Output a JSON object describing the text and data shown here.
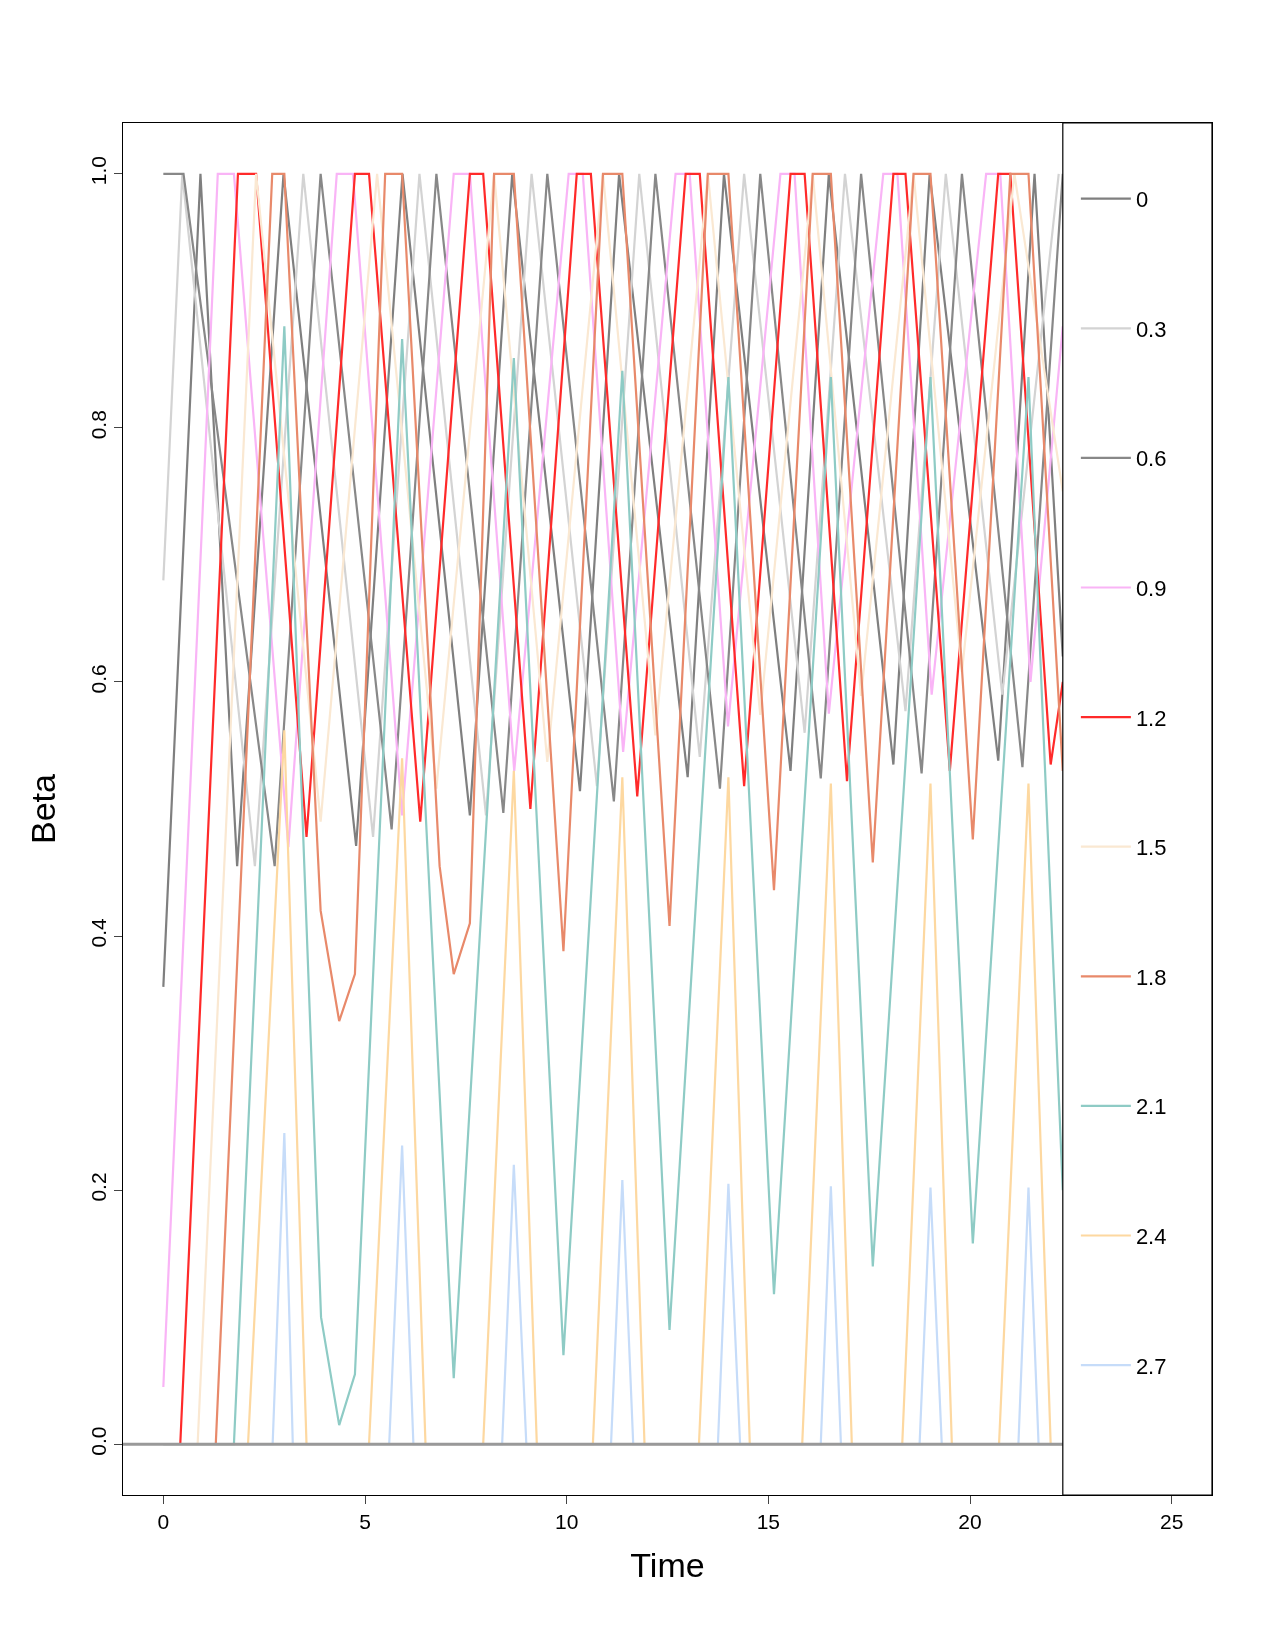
{
  "chart_data": {
    "type": "line",
    "xlabel": "Time",
    "ylabel": "Beta",
    "xlim": [
      -1,
      26
    ],
    "xticks": [
      0,
      5,
      10,
      15,
      20,
      25
    ],
    "ylim": [
      -0.04,
      1.04
    ],
    "yticks": [
      {
        "value": 0,
        "label": "0.0"
      },
      0.2,
      0.4,
      0.6,
      0.8,
      {
        "value": 1,
        "label": "1.0"
      }
    ],
    "grid": false,
    "legend": "right",
    "marker": "none",
    "line_style": "solid",
    "ref_lines": [
      {
        "axis": "y",
        "value": 0,
        "color": "#999999"
      }
    ],
    "series": [
      {
        "name": "0",
        "color": "#7f7f7f",
        "x": [
          0,
          0.92,
          1.83,
          2.98,
          4.78,
          5.93,
          7.6,
          8.65,
          10.33,
          11.3,
          13.0,
          13.9,
          15.55,
          16.5,
          18.1,
          19.0,
          20.7,
          21.6,
          22.3
        ],
        "values": [
          0.36,
          1,
          0.455,
          1,
          0.471,
          1,
          0.495,
          1,
          0.514,
          1,
          0.525,
          1,
          0.53,
          1,
          0.535,
          1,
          0.538,
          1,
          0.62
        ]
      },
      {
        "name": "0.3",
        "color": "#d3d3d3",
        "x": [
          0,
          0.47,
          2.27,
          3.47,
          5.2,
          6.35,
          8.0,
          9.13,
          10.75,
          11.8,
          13.3,
          14.4,
          15.9,
          16.9,
          18.4,
          19.4,
          20.8,
          22.2
        ],
        "values": [
          0.68,
          1,
          0.455,
          1,
          0.478,
          1,
          0.495,
          1,
          0.518,
          1,
          0.541,
          1,
          0.56,
          1,
          0.577,
          1,
          0.59,
          1
        ]
      },
      {
        "name": "0.6",
        "color": "#888888",
        "x": [
          0,
          0.5,
          2.76,
          3.9,
          5.66,
          6.77,
          8.43,
          9.52,
          11.17,
          12.2,
          13.8,
          14.8,
          16.3,
          17.3,
          18.8,
          19.8,
          21.3,
          22.3
        ],
        "values": [
          1,
          1,
          0.455,
          1,
          0.484,
          1,
          0.497,
          1,
          0.506,
          1,
          0.516,
          1,
          0.524,
          1,
          0.528,
          1,
          0.533,
          1
        ]
      },
      {
        "name": "0.9",
        "color": "#f9b4f6",
        "x": [
          0,
          1.35,
          1.75,
          3.1,
          4.3,
          4.7,
          5.92,
          7.2,
          7.6,
          8.7,
          10.05,
          10.4,
          11.4,
          12.7,
          13.05,
          14.0,
          15.3,
          15.65,
          16.5,
          17.85,
          18.2,
          19.05,
          20.4,
          20.75,
          21.5,
          22.3
        ],
        "values": [
          0.045,
          1,
          1,
          0.47,
          1,
          1,
          0.495,
          1,
          1,
          0.53,
          1,
          1,
          0.545,
          1,
          1,
          0.565,
          1,
          1,
          0.575,
          1,
          1,
          0.59,
          1,
          1,
          0.6,
          0.88
        ]
      },
      {
        "name": "1.2",
        "color": "#ff2a2a",
        "x": [
          0.42,
          1.85,
          2.3,
          3.55,
          4.75,
          5.1,
          6.37,
          7.6,
          7.93,
          9.1,
          10.25,
          10.6,
          11.75,
          12.95,
          13.3,
          14.4,
          15.55,
          15.9,
          16.95,
          18.1,
          18.4,
          19.5,
          20.7,
          21.0,
          22.0,
          22.3
        ],
        "values": [
          0,
          1,
          1,
          0.478,
          1,
          1,
          0.49,
          1,
          1,
          0.5,
          1,
          1,
          0.51,
          1,
          1,
          0.518,
          1,
          1,
          0.522,
          1,
          1,
          0.53,
          1,
          1,
          0.535,
          0.6
        ]
      },
      {
        "name": "1.5",
        "color": "#fae8d2",
        "x": [
          0.85,
          2.3,
          3.9,
          5.3,
          6.77,
          8.2,
          9.52,
          10.9,
          12.2,
          13.5,
          14.8,
          16.1,
          17.3,
          18.6,
          19.8,
          21.1,
          22.3
        ],
        "values": [
          0,
          1,
          0.49,
          1,
          0.516,
          1,
          0.537,
          1,
          0.558,
          1,
          0.574,
          1,
          0.589,
          1,
          0.608,
          1,
          0.75
        ]
      },
      {
        "name": "1.8",
        "color": "#e8896a",
        "x": [
          1.3,
          2.7,
          3.0,
          3.9,
          4.36,
          4.75,
          5.5,
          5.92,
          6.85,
          7.2,
          7.6,
          8.2,
          8.69,
          9.92,
          10.9,
          11.38,
          12.55,
          13.5,
          14.01,
          15.14,
          16.1,
          16.55,
          17.59,
          18.6,
          19.02,
          20.07,
          21.0,
          21.45,
          22.3
        ],
        "values": [
          0,
          1,
          1,
          0.42,
          0.333,
          0.37,
          1,
          1,
          0.455,
          0.37,
          0.41,
          1,
          1,
          0.388,
          1,
          1,
          0.408,
          1,
          1,
          0.436,
          1,
          1,
          0.458,
          1,
          1,
          0.476,
          1,
          1,
          0.53
        ]
      },
      {
        "name": "2.1",
        "color": "#8ecbc5",
        "x": [
          0,
          1.75,
          3.0,
          3.91,
          4.36,
          4.75,
          5.92,
          7.2,
          8.69,
          9.92,
          11.38,
          12.55,
          14.01,
          15.14,
          16.55,
          17.59,
          19.02,
          20.07,
          21.45,
          22.3
        ],
        "values": [
          0,
          0,
          0.88,
          0.1,
          0.015,
          0.055,
          0.87,
          0.052,
          0.855,
          0.07,
          0.845,
          0.09,
          0.84,
          0.118,
          0.84,
          0.14,
          0.84,
          0.158,
          0.84,
          0.2
        ]
      },
      {
        "name": "2.4",
        "color": "#fdd8a0",
        "x": [
          0,
          2.1,
          3.0,
          3.55,
          5.1,
          5.92,
          6.5,
          7.93,
          8.69,
          9.26,
          10.65,
          11.38,
          11.93,
          13.28,
          14.01,
          14.54,
          15.84,
          16.55,
          17.07,
          18.32,
          19.02,
          19.55,
          20.72,
          21.45,
          22.0,
          22.3
        ],
        "values": [
          0,
          0,
          0.562,
          0,
          0,
          0.54,
          0,
          0,
          0.53,
          0,
          0,
          0.525,
          0,
          0,
          0.525,
          0,
          0,
          0.52,
          0,
          0,
          0.52,
          0,
          0,
          0.52,
          0,
          0
        ]
      },
      {
        "name": "2.7",
        "color": "#c6dcf9",
        "x": [
          0,
          2.71,
          3.0,
          3.21,
          5.6,
          5.92,
          6.2,
          8.4,
          8.69,
          9.0,
          11.1,
          11.38,
          11.65,
          13.75,
          14.01,
          14.3,
          16.3,
          16.55,
          16.8,
          18.75,
          19.02,
          19.3,
          21.2,
          21.45,
          21.7,
          22.3
        ],
        "values": [
          0,
          0,
          0.245,
          0,
          0,
          0.235,
          0,
          0,
          0.22,
          0,
          0,
          0.208,
          0,
          0,
          0.205,
          0,
          0,
          0.203,
          0,
          0,
          0.202,
          0,
          0,
          0.202,
          0,
          0
        ]
      }
    ]
  }
}
